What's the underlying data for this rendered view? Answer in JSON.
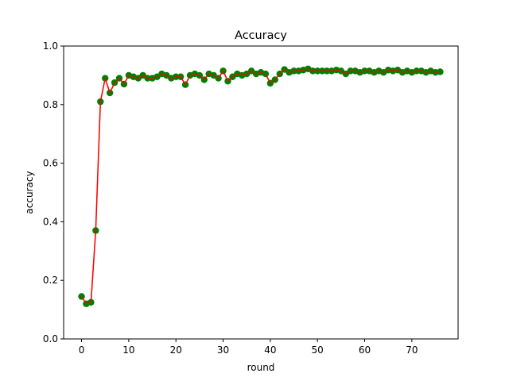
{
  "chart_data": {
    "type": "line",
    "title": "Accuracy",
    "xlabel": "round",
    "ylabel": "accuracy",
    "xlim": [
      -3.8,
      79.8
    ],
    "ylim": [
      0.0,
      1.0
    ],
    "xticks": [
      0,
      10,
      20,
      30,
      40,
      50,
      60,
      70
    ],
    "yticks": [
      0.0,
      0.2,
      0.4,
      0.6,
      0.8,
      1.0
    ],
    "xtick_labels": [
      "0",
      "10",
      "20",
      "30",
      "40",
      "50",
      "60",
      "70"
    ],
    "ytick_labels": [
      "0.0",
      "0.2",
      "0.4",
      "0.6",
      "0.8",
      "1.0"
    ],
    "grid": false,
    "line_color": "#ff0000",
    "marker_color": "#008000",
    "series": [
      {
        "x": [
          0,
          1,
          2,
          3,
          4,
          5,
          6,
          7,
          8,
          9,
          10,
          11,
          12,
          13,
          14,
          15,
          16,
          17,
          18,
          19,
          20,
          21,
          22,
          23,
          24,
          25,
          26,
          27,
          28,
          29,
          30,
          31,
          32,
          33,
          34,
          35,
          36,
          37,
          38,
          39,
          40,
          41,
          42,
          43,
          44,
          45,
          46,
          47,
          48,
          49,
          50,
          51,
          52,
          53,
          54,
          55,
          56,
          57,
          58,
          59,
          60,
          61,
          62,
          63,
          64,
          65,
          66,
          67,
          68,
          69,
          70,
          71,
          72,
          73,
          74,
          75,
          76
        ],
        "y": [
          0.145,
          0.12,
          0.125,
          0.37,
          0.81,
          0.89,
          0.84,
          0.875,
          0.89,
          0.87,
          0.9,
          0.895,
          0.89,
          0.9,
          0.89,
          0.89,
          0.895,
          0.905,
          0.9,
          0.89,
          0.895,
          0.895,
          0.868,
          0.9,
          0.905,
          0.9,
          0.885,
          0.905,
          0.9,
          0.89,
          0.915,
          0.88,
          0.895,
          0.905,
          0.9,
          0.905,
          0.915,
          0.905,
          0.91,
          0.905,
          0.873,
          0.885,
          0.905,
          0.92,
          0.91,
          0.915,
          0.915,
          0.918,
          0.922,
          0.915,
          0.915,
          0.915,
          0.915,
          0.915,
          0.918,
          0.915,
          0.905,
          0.915,
          0.915,
          0.91,
          0.915,
          0.915,
          0.91,
          0.915,
          0.91,
          0.918,
          0.915,
          0.918,
          0.91,
          0.915,
          0.91,
          0.915,
          0.915,
          0.91,
          0.915,
          0.91,
          0.912
        ]
      }
    ]
  }
}
